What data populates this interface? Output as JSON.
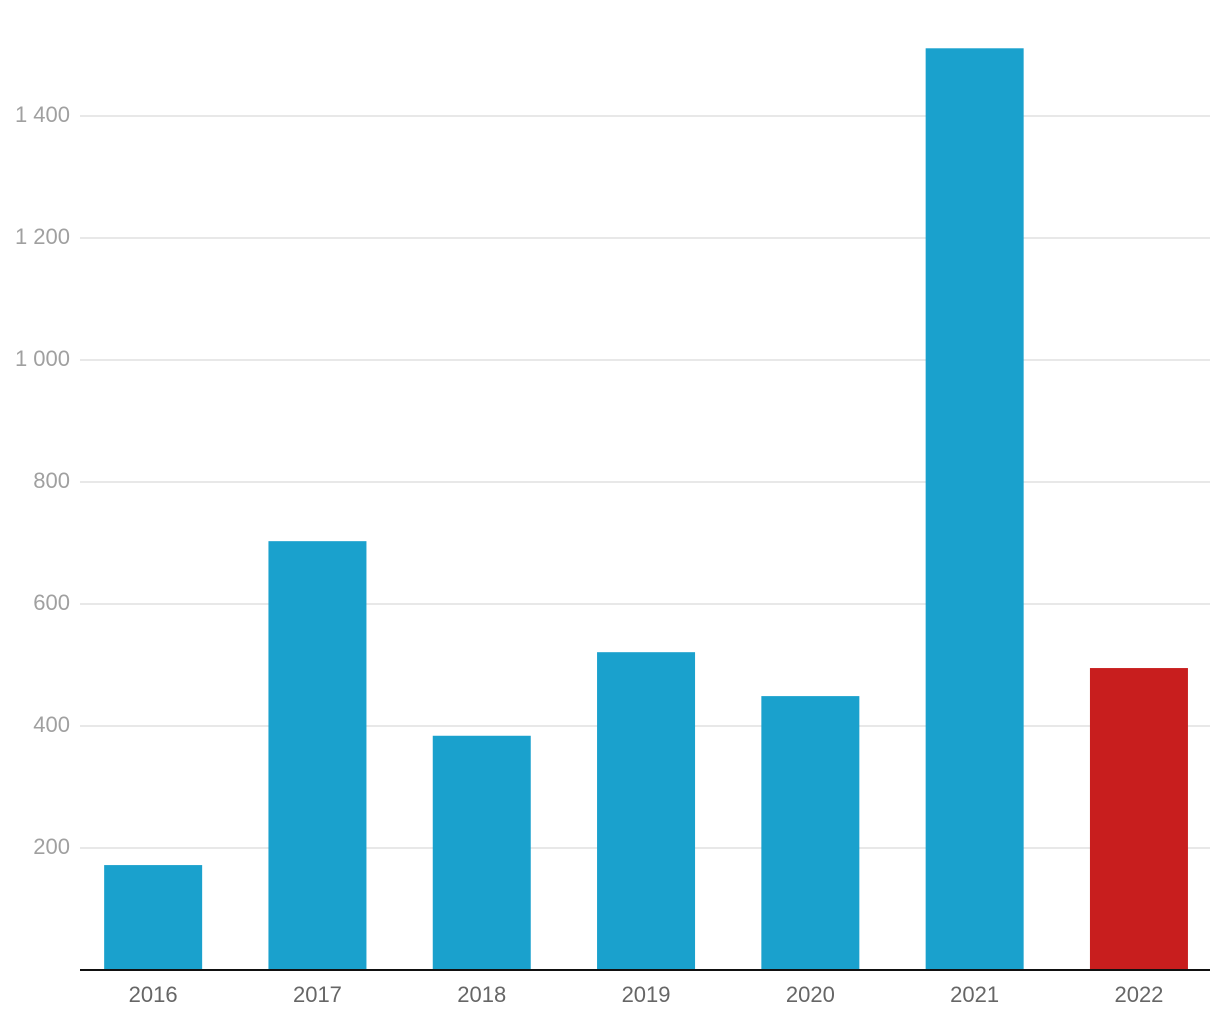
{
  "chart_data": {
    "type": "bar",
    "categories": [
      "2016",
      "2017",
      "2018",
      "2019",
      "2020",
      "2021",
      "2022"
    ],
    "values": [
      172,
      703,
      384,
      521,
      449,
      1511,
      495
    ],
    "colors": [
      "#1aa1cd",
      "#1aa1cd",
      "#1aa1cd",
      "#1aa1cd",
      "#1aa1cd",
      "#1aa1cd",
      "#c81e1e"
    ],
    "ylim": [
      0,
      1520
    ],
    "yticks": [
      200,
      400,
      600,
      800,
      {
        "value": 1000,
        "label": "1 000"
      },
      {
        "value": 1200,
        "label": "1 200"
      },
      {
        "value": 1400,
        "label": "1 400"
      }
    ],
    "grid": true
  }
}
